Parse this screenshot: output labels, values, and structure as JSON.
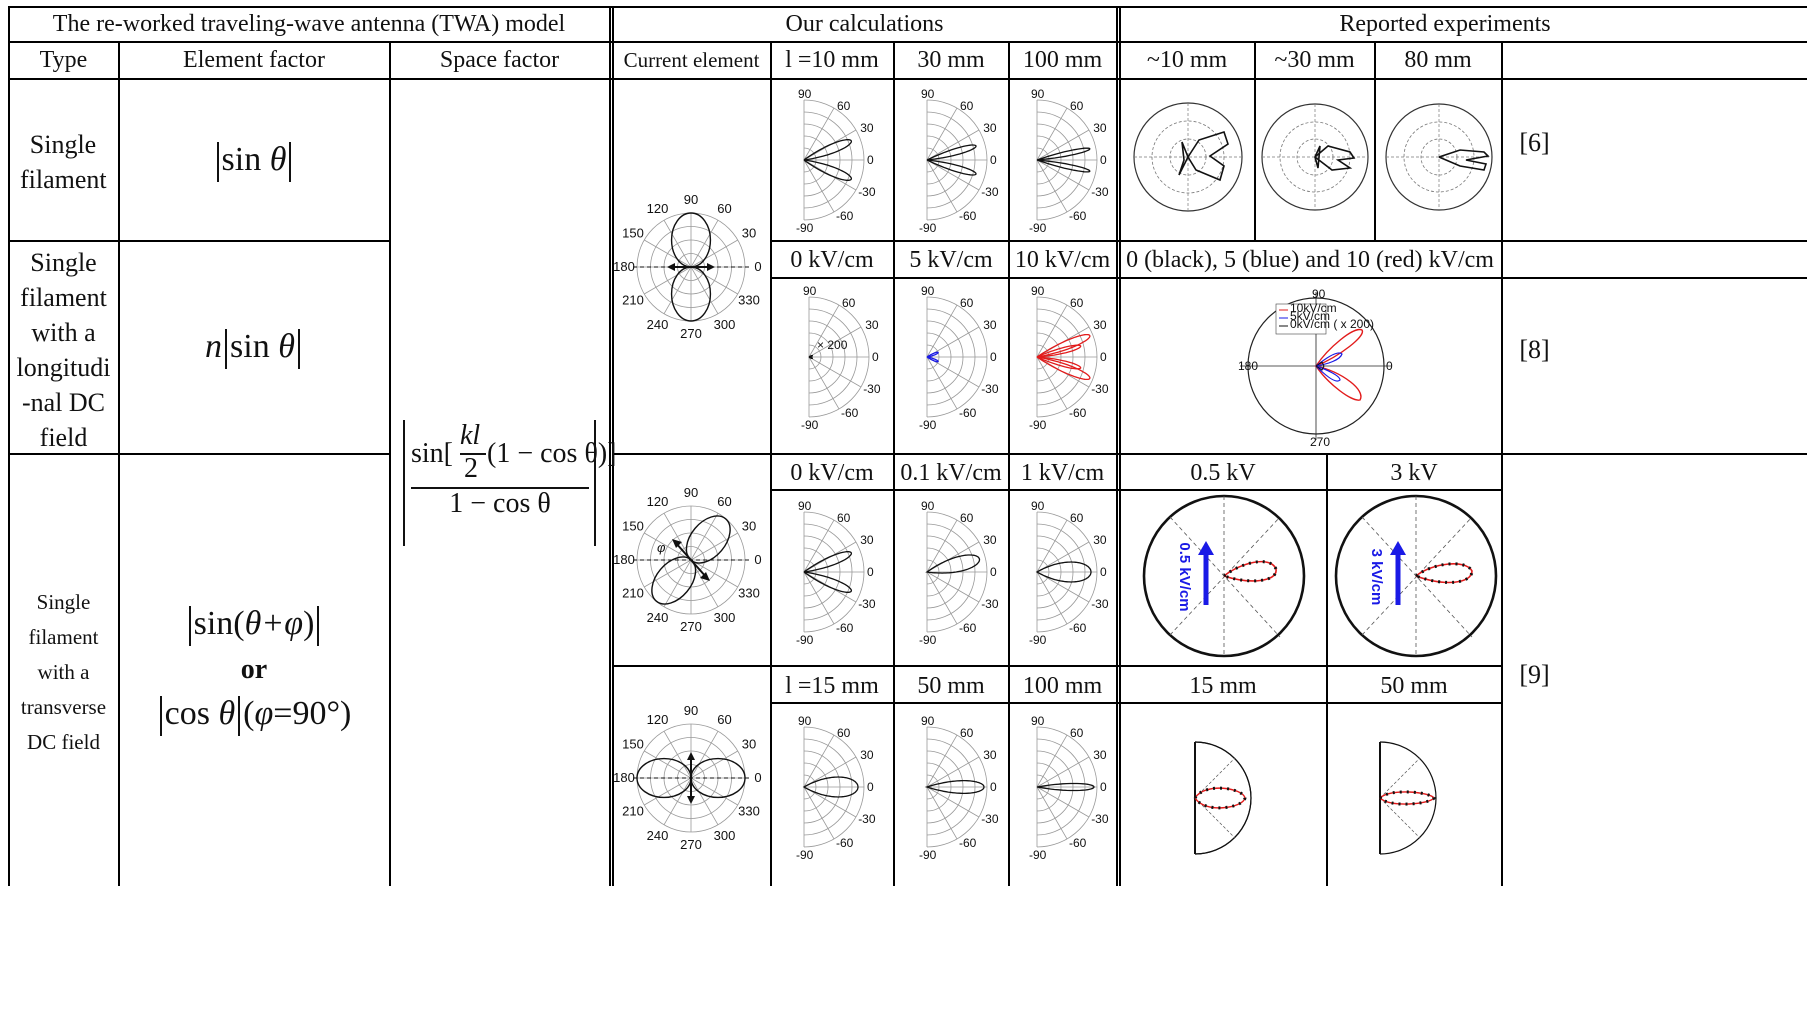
{
  "headers": {
    "model": "The re-worked traveling-wave antenna (TWA) model",
    "calc": "Our calculations",
    "exp": "Reported experiments"
  },
  "subheaders": {
    "type": "Type",
    "element": "Element factor",
    "space": "Space factor",
    "current": "Current element",
    "l10": "l =10 mm",
    "c30": "30 mm",
    "c100": "100 mm",
    "e10": "~10 mm",
    "e30": "~30 mm",
    "e80": "80 mm"
  },
  "rows": {
    "r1": {
      "type": "Single filament",
      "factor": "|sin θ|",
      "ref": "[6]"
    },
    "r2": {
      "type_lines": [
        "Single",
        "filament",
        "with a",
        "longitudi",
        "-nal DC",
        "field"
      ],
      "factor": "n|sin θ|",
      "ref": "[8]",
      "calc_labels": [
        "0 kV/cm",
        "5 kV/cm",
        "10 kV/cm"
      ],
      "exp_label": "0 (black), 5 (blue) and 10 (red) kV/cm"
    },
    "r3": {
      "type_lines": [
        "Single",
        "filament",
        "with a",
        "transverse",
        "DC field"
      ],
      "factor1": "|sin(θ+φ)|",
      "or": "or",
      "factor2": "|cos θ|(φ=90°)",
      "ref": "[9]",
      "calc_labels": [
        "0 kV/cm",
        "0.1 kV/cm",
        "1 kV/cm"
      ],
      "exp_labels": [
        "0.5 kV",
        "3 kV"
      ],
      "exp_arrow_labels": [
        "0.5 kV/cm",
        "3 kV/cm"
      ],
      "calc_labels2": [
        "l =15 mm",
        "50 mm",
        "100 mm"
      ],
      "exp_labels2": [
        "15 mm",
        "50 mm"
      ]
    }
  },
  "space_factor": {
    "num_pre": "sin[",
    "kl": "kl",
    "two": "2",
    "num_post": "(1 − cos θ)]",
    "den": "1 − cos θ"
  },
  "polar": {
    "half_ticks": [
      "90",
      "60",
      "30",
      "0",
      "-30",
      "-60",
      "-90"
    ],
    "full_ticks": [
      "90",
      "60",
      "30",
      "0",
      "330",
      "300",
      "270",
      "240",
      "210",
      "180",
      "150",
      "120"
    ],
    "x200": "× 200",
    "phi": "φ"
  },
  "exp_fig": {
    "ticks_full": [
      "90",
      "180",
      "270",
      "0"
    ],
    "legend": [
      "10kV/cm",
      "5kV/cm",
      "0kV/cm ( x 200)"
    ]
  },
  "colors": {
    "blue": "#1a1ae6",
    "red": "#e21b1b",
    "dark_red": "#8b1a1a"
  }
}
